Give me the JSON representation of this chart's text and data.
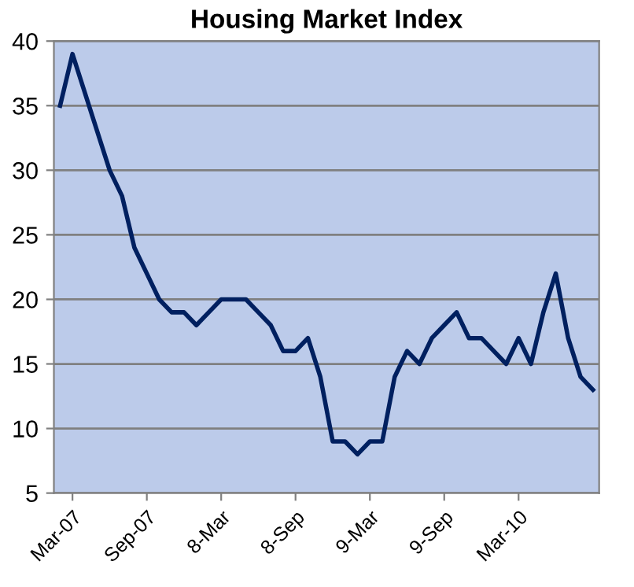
{
  "chart_data": {
    "type": "line",
    "title": "Housing Market Index",
    "categories": [
      null,
      "Mar-07",
      null,
      null,
      null,
      null,
      null,
      "Sep-07",
      null,
      null,
      null,
      null,
      null,
      "8-Mar",
      null,
      null,
      null,
      null,
      null,
      "8-Sep",
      null,
      null,
      null,
      null,
      null,
      "9-Mar",
      null,
      null,
      null,
      null,
      null,
      "9-Sep",
      null,
      null,
      null,
      null,
      null,
      "Mar-10",
      null,
      null,
      null,
      null,
      null,
      null
    ],
    "series": [
      {
        "color": "#002060",
        "values": [
          35,
          39,
          36,
          33,
          30,
          28,
          24,
          22,
          20,
          19,
          19,
          18,
          19,
          20,
          20,
          20,
          19,
          18,
          16,
          16,
          17,
          14,
          9,
          9,
          8,
          9,
          9,
          14,
          16,
          15,
          17,
          18,
          19,
          17,
          17,
          16,
          15,
          17,
          15,
          19,
          22,
          17,
          14,
          13
        ]
      }
    ],
    "ylim": [
      5,
      40
    ],
    "yticks": [
      5,
      10,
      15,
      20,
      25,
      30,
      35,
      40
    ],
    "grid": "y",
    "legend": false,
    "marker": "none",
    "line_style": "solid"
  }
}
